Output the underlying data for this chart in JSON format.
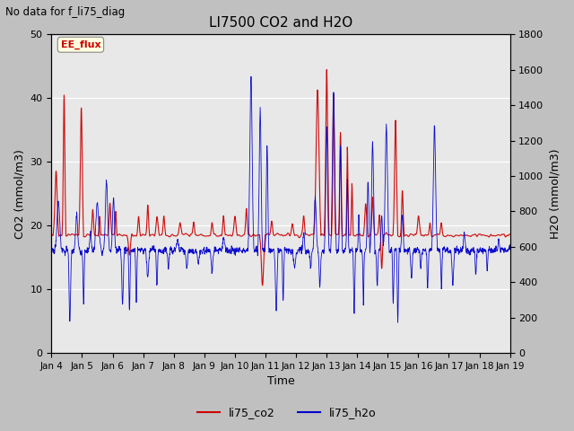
{
  "title": "LI7500 CO2 and H2O",
  "subtitle": "No data for f_li75_diag",
  "xlabel": "Time",
  "ylabel_left": "CO2 (mmol/m3)",
  "ylabel_right": "H2O (mmol/m3)",
  "ylim_left": [
    0,
    50
  ],
  "ylim_right": [
    0,
    1800
  ],
  "legend_label_co2": "li75_co2",
  "legend_label_h2o": "li75_h2o",
  "annotation": "EE_flux",
  "color_co2": "#cc0000",
  "color_h2o": "#0000cc",
  "bg_fig": "#c8c8c8",
  "bg_axes": "#e8e8e8",
  "x_tick_labels": [
    "Jan 4",
    "Jan 5",
    "Jan 6",
    "Jan 7",
    "Jan 8",
    "Jan 9",
    "Jan 10",
    "Jan 11",
    "Jan 12",
    "Jan 13",
    "Jan 14",
    "Jan 15",
    "Jan 16",
    "Jan 17",
    "Jan 18",
    "Jan 19"
  ],
  "n_points": 2000
}
